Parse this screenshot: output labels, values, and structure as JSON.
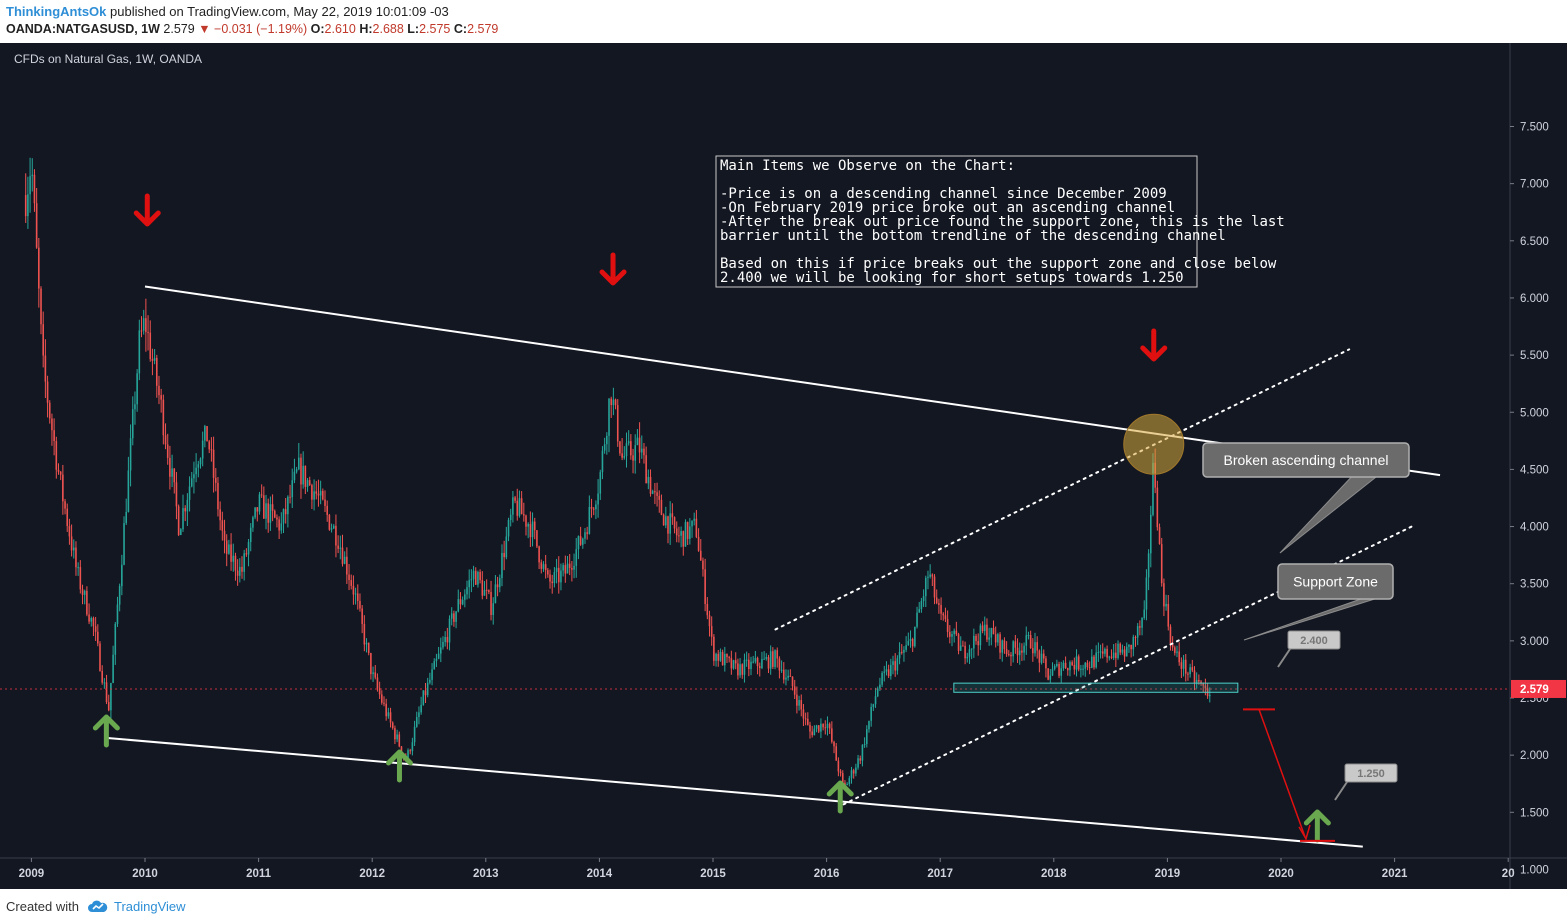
{
  "header": {
    "author": "ThinkingAntsOk",
    "published": "published on TradingView.com, May 22, 2019 10:01:09 -03",
    "symbol": "OANDA:NATGASUSD, 1W",
    "last": "2.579",
    "change": "−0.031 (−1.19%)",
    "open_label": "O:",
    "open": "2.610",
    "high_label": "H:",
    "high": "2.688",
    "low_label": "L:",
    "low": "2.575",
    "close_label": "C:",
    "close": "2.579"
  },
  "footer": {
    "created_with": "Created with",
    "brand": "TradingView"
  },
  "colors": {
    "background": "#131722",
    "up": "#26a69a",
    "down": "#ef5350",
    "trend": "#ffffff",
    "arrow_red": "#e01010",
    "arrow_green": "#6aa84f",
    "price_tag": "#f23645"
  },
  "chart_data": {
    "type": "candlestick",
    "title": "CFDs on Natural Gas, 1W, OANDA",
    "ylim": [
      0.75,
      7.75
    ],
    "y_ticks": [
      "7.500",
      "7.000",
      "6.500",
      "6.000",
      "5.500",
      "5.000",
      "4.500",
      "4.000",
      "3.500",
      "3.000",
      "2.500",
      "2.000",
      "1.500",
      "1.000"
    ],
    "x_ticks": [
      "2009",
      "2010",
      "2011",
      "2012",
      "2013",
      "2014",
      "2015",
      "2016",
      "2017",
      "2018",
      "2019",
      "2020",
      "2021",
      "20"
    ],
    "last_price": {
      "value": 2.579,
      "label": "2.579"
    },
    "price_path": [
      [
        2008.95,
        6.9
      ],
      [
        2009.0,
        7.2
      ],
      [
        2009.1,
        5.4
      ],
      [
        2009.25,
        4.4
      ],
      [
        2009.4,
        3.6
      ],
      [
        2009.55,
        3.1
      ],
      [
        2009.68,
        2.4
      ],
      [
        2009.8,
        3.8
      ],
      [
        2009.95,
        5.6
      ],
      [
        2010.0,
        5.8
      ],
      [
        2010.15,
        5.0
      ],
      [
        2010.3,
        4.0
      ],
      [
        2010.45,
        4.6
      ],
      [
        2010.55,
        4.8
      ],
      [
        2010.7,
        3.8
      ],
      [
        2010.85,
        3.6
      ],
      [
        2011.0,
        4.2
      ],
      [
        2011.2,
        4.0
      ],
      [
        2011.35,
        4.5
      ],
      [
        2011.5,
        4.3
      ],
      [
        2011.7,
        3.9
      ],
      [
        2011.85,
        3.4
      ],
      [
        2012.0,
        2.7
      ],
      [
        2012.15,
        2.3
      ],
      [
        2012.3,
        1.95
      ],
      [
        2012.45,
        2.5
      ],
      [
        2012.6,
        2.9
      ],
      [
        2012.75,
        3.3
      ],
      [
        2012.9,
        3.6
      ],
      [
        2013.05,
        3.3
      ],
      [
        2013.25,
        4.2
      ],
      [
        2013.4,
        4.0
      ],
      [
        2013.55,
        3.5
      ],
      [
        2013.7,
        3.6
      ],
      [
        2013.85,
        3.9
      ],
      [
        2014.0,
        4.4
      ],
      [
        2014.1,
        5.2
      ],
      [
        2014.2,
        4.6
      ],
      [
        2014.35,
        4.7
      ],
      [
        2014.5,
        4.2
      ],
      [
        2014.7,
        3.9
      ],
      [
        2014.85,
        4.0
      ],
      [
        2015.0,
        2.9
      ],
      [
        2015.2,
        2.75
      ],
      [
        2015.4,
        2.8
      ],
      [
        2015.55,
        2.85
      ],
      [
        2015.7,
        2.6
      ],
      [
        2015.85,
        2.2
      ],
      [
        2016.0,
        2.3
      ],
      [
        2016.15,
        1.7
      ],
      [
        2016.3,
        2.0
      ],
      [
        2016.45,
        2.6
      ],
      [
        2016.6,
        2.8
      ],
      [
        2016.75,
        3.0
      ],
      [
        2016.9,
        3.6
      ],
      [
        2017.0,
        3.2
      ],
      [
        2017.2,
        2.9
      ],
      [
        2017.4,
        3.1
      ],
      [
        2017.6,
        2.9
      ],
      [
        2017.8,
        3.0
      ],
      [
        2017.95,
        2.7
      ],
      [
        2018.1,
        2.8
      ],
      [
        2018.3,
        2.8
      ],
      [
        2018.5,
        2.9
      ],
      [
        2018.65,
        2.9
      ],
      [
        2018.8,
        3.2
      ],
      [
        2018.88,
        4.6
      ],
      [
        2018.95,
        3.5
      ],
      [
        2019.05,
        2.9
      ],
      [
        2019.2,
        2.7
      ],
      [
        2019.35,
        2.55
      ],
      [
        2019.38,
        2.579
      ]
    ],
    "annotations": {
      "info_box": {
        "title": "Main Items we Observe on the Chart:",
        "lines": [
          "-Price is on a descending channel since December 2009",
          "-On February 2019 price broke out an ascending channel",
          "-After the break out price found the support zone, this is the last",
          "barrier until the bottom trendline of the descending channel",
          "",
          "Based on this if price breaks out the support zone and close below",
          "2.400 we will be looking for short setups towards 1.250"
        ]
      },
      "callouts": {
        "broken_channel": "Broken ascending channel",
        "support_zone": "Support Zone"
      },
      "targets": {
        "level_1": "2.400",
        "level_2": "1.250"
      },
      "descending_channel": {
        "upper": [
          [
            2010.0,
            6.1
          ],
          [
            2021.4,
            4.45
          ]
        ],
        "lower": [
          [
            2009.67,
            2.15
          ],
          [
            2020.72,
            1.2
          ]
        ]
      },
      "ascending_channel": {
        "upper": [
          [
            2015.55,
            3.1
          ],
          [
            2020.6,
            5.55
          ]
        ],
        "lower": [
          [
            2016.15,
            1.57
          ],
          [
            2021.15,
            4.0
          ]
        ]
      },
      "support_zone_range": [
        2.55,
        2.63
      ]
    }
  }
}
